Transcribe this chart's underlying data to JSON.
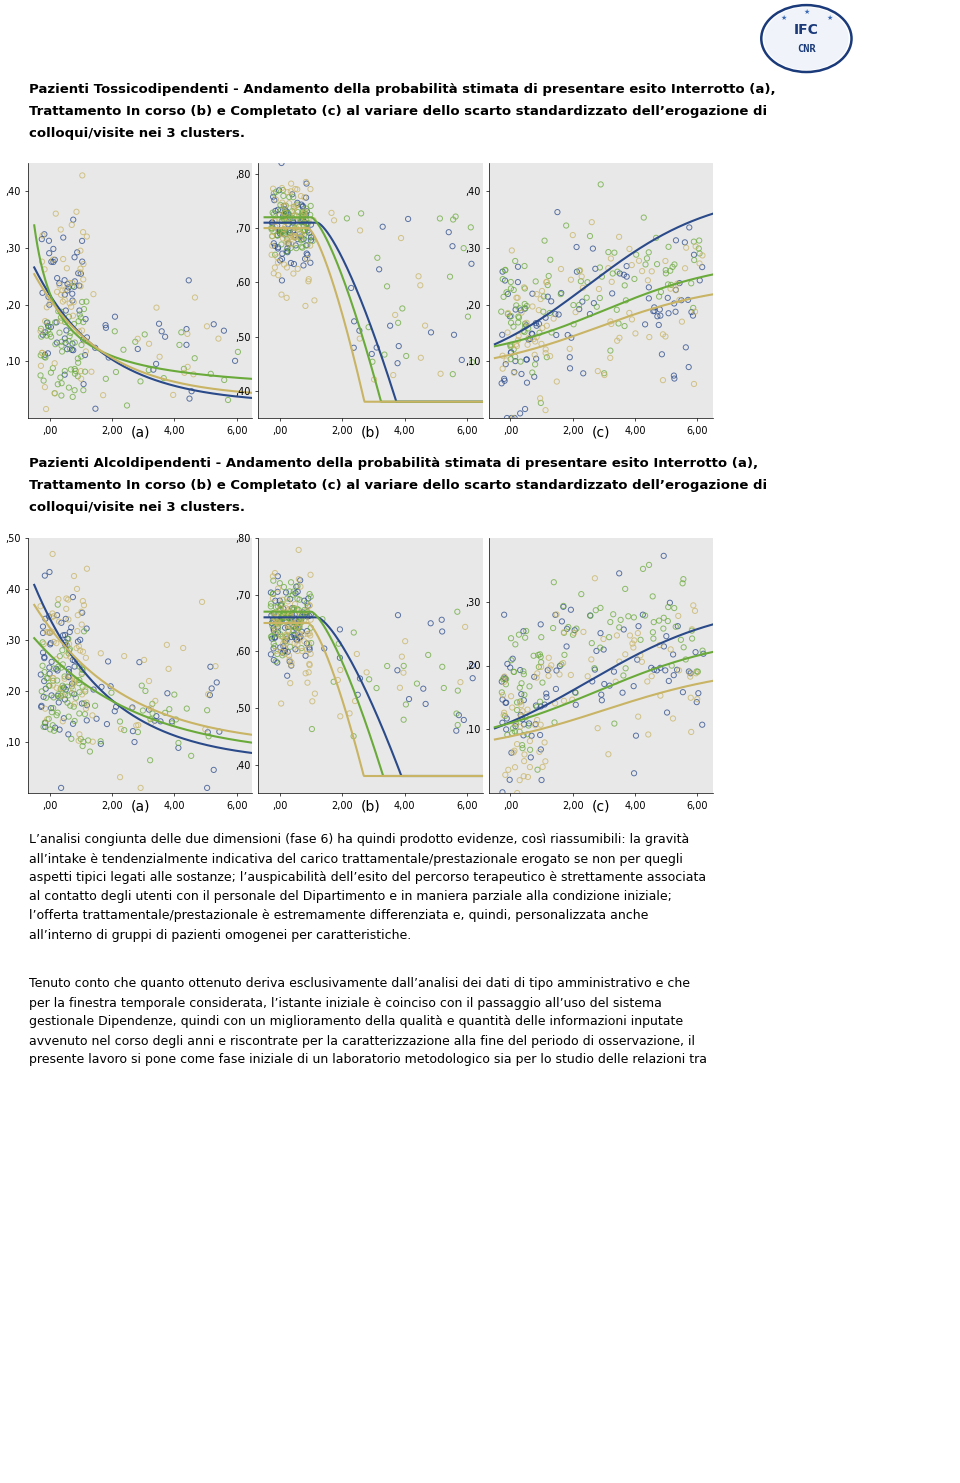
{
  "title1_lines": [
    "Pazienti Tossicodipendenti - Andamento della probabilità stimata di presentare esito Interrotto (a),",
    "Trattamento In corso (b) e Completato (c) al variare dello scarto standardizzato dell’erogazione di",
    "colloqui/visite nei 3 clusters."
  ],
  "title2_lines": [
    "Pazienti Alcoldipendenti - Andamento della probabilità stimata di presentare esito Interrotto (a),",
    "Trattamento In corso (b) e Completato (c) al variare dello scarto standardizzato dell’erogazione di",
    "colloqui/visite nei 3 clusters."
  ],
  "para1": "L’analisi congiunta delle due dimensioni (fase 6) ha quindi prodotto evidenze, così riassumibili: la gravità all’intake è tendenzialmente indicativa del carico trattamentale/prestazionale erogato se non per quegli aspetti tipici legati alle sostanze; l’auspicabilità dell’esito del percorso terapeutico è strettamente associata al contatto degli utenti con il personale del Dipartimento e in maniera parziale alla condizione iniziale; l’offerta trattamentale/prestazionale è estremamente differenziata e, quindi, personalizzata anche all’interno di gruppi di pazienti omogenei per caratteristiche.",
  "para2": "Tenuto conto che quanto ottenuto deriva esclusivamente dall’analisi dei dati di tipo amministrativo e che per la finestra temporale considerata, l’istante iniziale è coinciso con il passaggio all’uso del sistema gestionale Dipendenze, quindi con un miglioramento della qualità e quantità delle informazioni inputate avvenuto nel corso degli anni e riscontrate per la caratterizzazione alla fine del periodo di osservazione, il presente lavoro si pone come fase iniziale di un laboratorio metodologico sia per lo studio delle relazioni tra",
  "subplot_labels": [
    "(a)",
    "(b)",
    "(c)"
  ],
  "bg_color": "#e8e8e8",
  "colors_blue": "#2a4a8a",
  "colors_green": "#6aaa3a",
  "colors_tan": "#c8b464",
  "fig_bg": "#ffffff",
  "title_fontsize": 9.5,
  "label_fontsize": 10,
  "tick_fontsize": 7,
  "body_fontsize": 9
}
